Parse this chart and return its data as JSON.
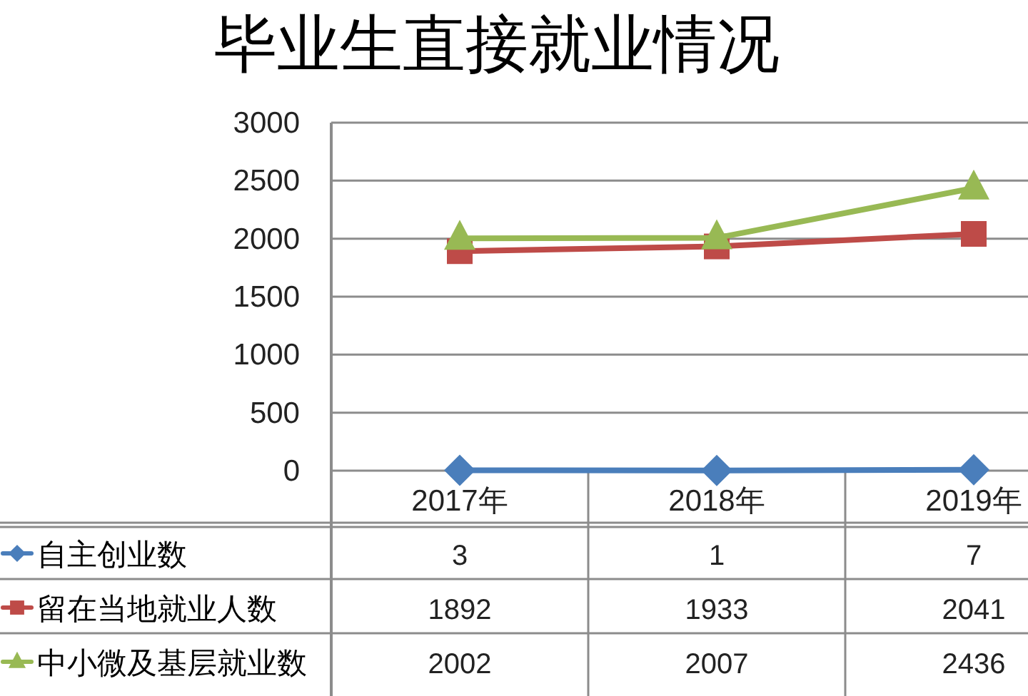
{
  "chart_data": {
    "type": "line",
    "title": "毕业生直接就业情况",
    "categories": [
      "2017年",
      "2018年",
      "2019年"
    ],
    "series": [
      {
        "name": "自主创业数",
        "color": "#4a7ebb",
        "marker": "diamond",
        "line_style": "solid",
        "values": [
          3,
          1,
          7
        ]
      },
      {
        "name": "留在当地就业人数",
        "color": "#be4b48",
        "marker": "square",
        "line_style": "solid",
        "values": [
          1892,
          1933,
          2041
        ]
      },
      {
        "name": "中小微及基层就业数",
        "color": "#98b954",
        "marker": "triangle",
        "line_style": "solid",
        "values": [
          2002,
          2007,
          2436
        ]
      }
    ],
    "ylim": [
      0,
      3000
    ],
    "yticks": [
      0,
      500,
      1000,
      1500,
      2000,
      2500,
      3000
    ],
    "grid": "y",
    "legend": "bottom left",
    "data_labels": true
  }
}
